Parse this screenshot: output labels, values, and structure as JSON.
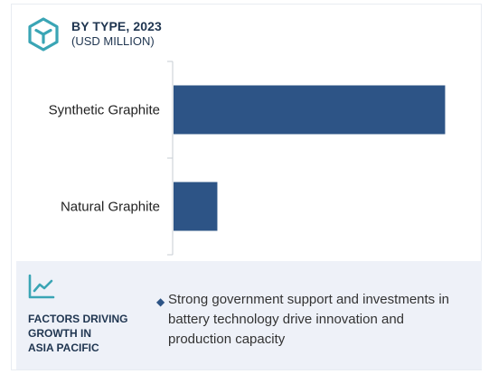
{
  "header": {
    "title": "BY TYPE, 2023",
    "subtitle": "(USD MILLION)",
    "icon": "cube-icon"
  },
  "chart_data": {
    "type": "bar",
    "orientation": "horizontal",
    "categories": [
      "Synthetic Graphite",
      "Natural Graphite"
    ],
    "values": [
      6.2,
      1.0
    ],
    "xlim": [
      0,
      6.5
    ],
    "bar_color": "#2d5486",
    "grid": false,
    "title": "BY TYPE, 2023",
    "xlabel": "",
    "ylabel": ""
  },
  "footer": {
    "icon": "line-chart-icon",
    "factors_label": "FACTORS DRIVING\nGROWTH IN\nASIA PACIFIC",
    "bullet": "Strong government support and investments in battery technology drive innovation and production capacity"
  },
  "colors": {
    "accent": "#2d5486",
    "icon_teal": "#3aa5b5",
    "footer_bg": "#eef1f8"
  }
}
